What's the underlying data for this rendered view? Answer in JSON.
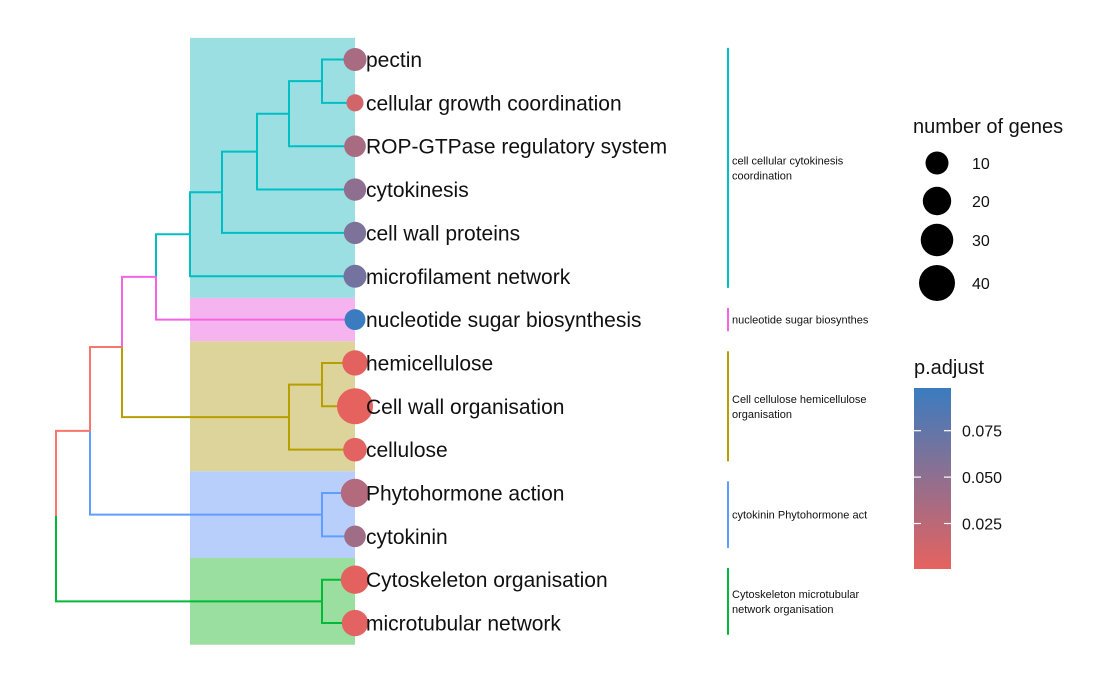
{
  "chart_data": {
    "type": "treeplot",
    "title": "",
    "terms": [
      {
        "label": "pectin",
        "cluster": 0,
        "genes": 10,
        "p_adjust": 0.035
      },
      {
        "label": "cellular growth coordination",
        "cluster": 0,
        "genes": 3,
        "p_adjust": 0.012
      },
      {
        "label": "ROP-GTPase regulatory system",
        "cluster": 0,
        "genes": 8,
        "p_adjust": 0.035
      },
      {
        "label": "cytokinesis",
        "cluster": 0,
        "genes": 9,
        "p_adjust": 0.05
      },
      {
        "label": "cell wall proteins",
        "cluster": 0,
        "genes": 9,
        "p_adjust": 0.06
      },
      {
        "label": "microfilament network",
        "cluster": 0,
        "genes": 10,
        "p_adjust": 0.065
      },
      {
        "label": "nucleotide sugar biosynthesis",
        "cluster": 1,
        "genes": 7,
        "p_adjust": 0.098
      },
      {
        "label": "hemicellulose",
        "cluster": 2,
        "genes": 14,
        "p_adjust": 0.002
      },
      {
        "label": "Cell wall organisation",
        "cluster": 2,
        "genes": 40,
        "p_adjust": 0.001
      },
      {
        "label": "cellulose",
        "cluster": 2,
        "genes": 11,
        "p_adjust": 0.003
      },
      {
        "label": "Phytohormone action",
        "cluster": 3,
        "genes": 20,
        "p_adjust": 0.03
      },
      {
        "label": "cytokinin",
        "cluster": 3,
        "genes": 8,
        "p_adjust": 0.04
      },
      {
        "label": "Cytoskeleton organisation",
        "cluster": 4,
        "genes": 20,
        "p_adjust": 0.002
      },
      {
        "label": "microtubular network",
        "cluster": 4,
        "genes": 16,
        "p_adjust": 0.003
      }
    ],
    "clusters": [
      {
        "label_lines": [
          "cell cellular cytokinesis",
          "coordination"
        ],
        "color": "#00BFC4",
        "fill": "#9BDFE2"
      },
      {
        "label_lines": [
          "nucleotide sugar biosynthes"
        ],
        "color": "#F564E3",
        "fill": "#F5B3EF"
      },
      {
        "label_lines": [
          "Cell cellulose hemicellulose",
          "organisation"
        ],
        "color": "#B79F00",
        "fill": "#DDD49B"
      },
      {
        "label_lines": [
          "cytokinin Phytohormone act"
        ],
        "color": "#619CFF",
        "fill": "#B9CFFB"
      },
      {
        "label_lines": [
          "Cytoskeleton microtubular",
          "network organisation"
        ],
        "color": "#00BA38",
        "fill": "#9ADF9F"
      }
    ],
    "size_legend": {
      "title": "number of genes",
      "values": [
        10,
        20,
        30,
        40
      ]
    },
    "color_legend": {
      "title": "p.adjust",
      "ticks": [
        "0.075",
        "0.050",
        "0.025"
      ],
      "tick_values": [
        0.075,
        0.05,
        0.025
      ],
      "range": [
        0.0005,
        0.098
      ],
      "low_color": "#E6625F",
      "high_color": "#3A7CBF"
    },
    "tree_colors": {
      "root_upper": "#F8766D",
      "root_lower": "#00BA38"
    }
  }
}
